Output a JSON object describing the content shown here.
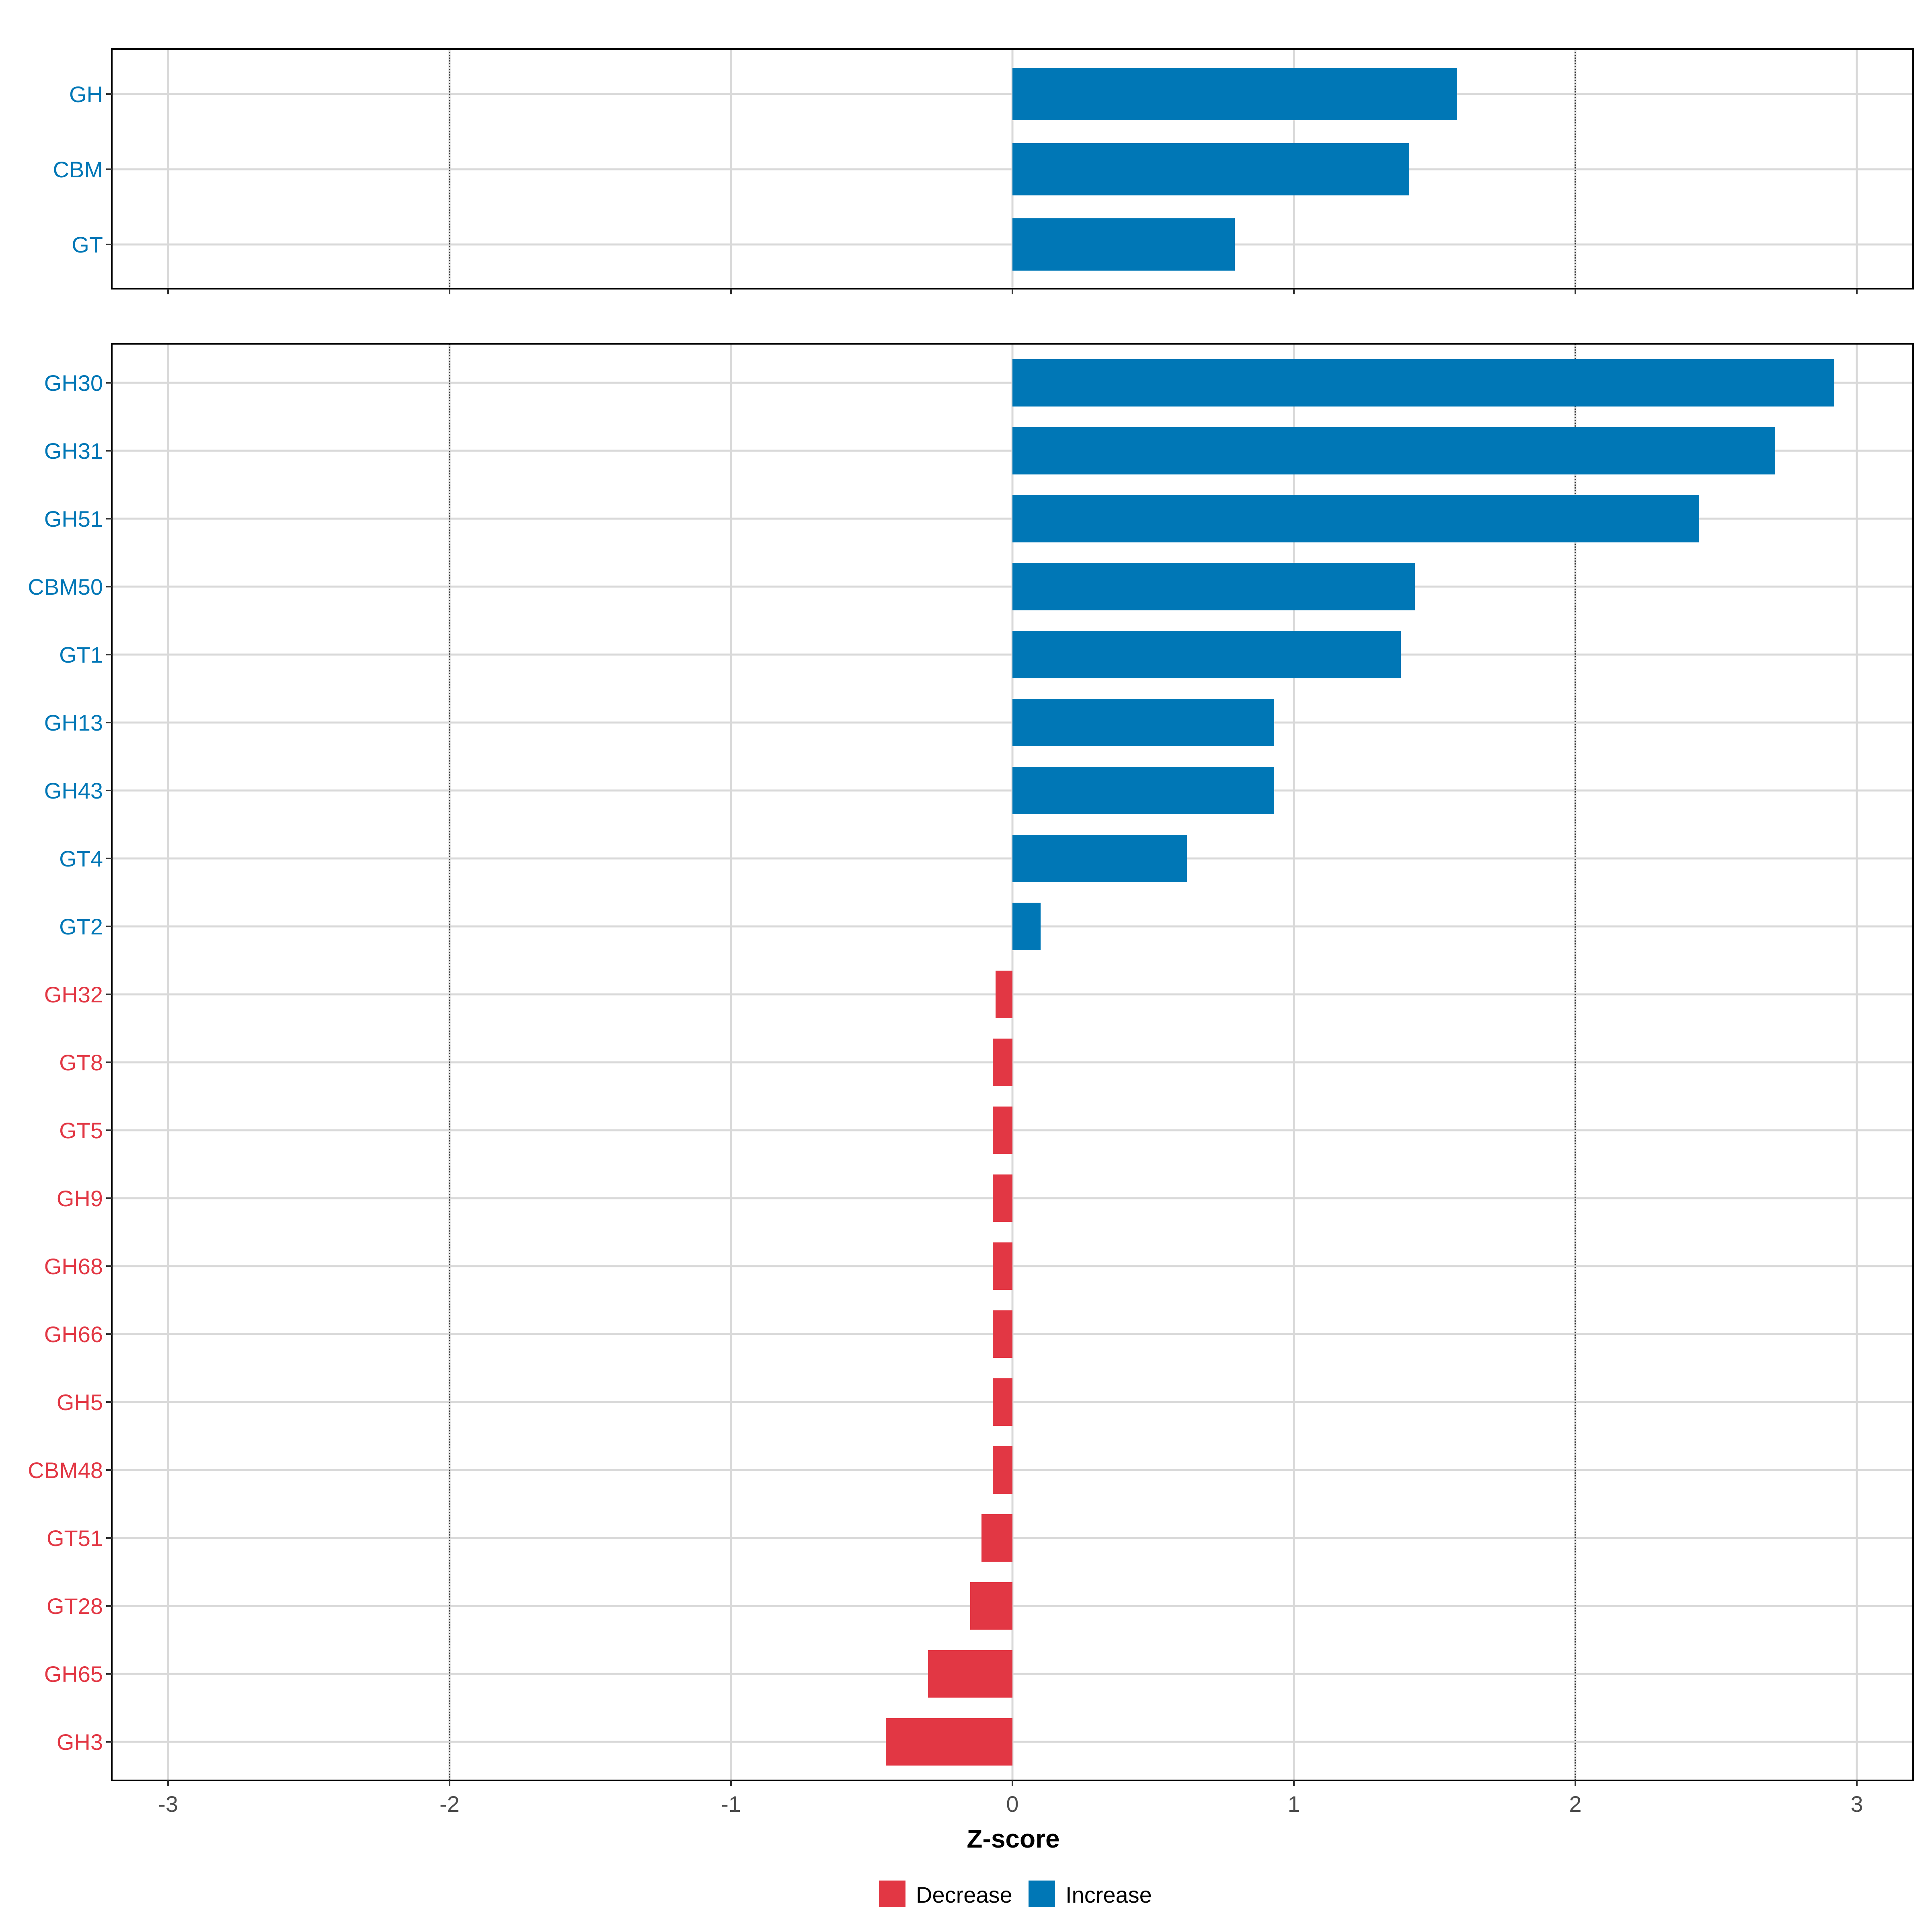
{
  "chart_data": [
    {
      "type": "bar",
      "orientation": "horizontal",
      "title": "",
      "xlabel": "Z-score",
      "ylabel": "",
      "xlim": [
        -3.2,
        3.2
      ],
      "x_ticks": [
        "-3",
        "-2",
        "-1",
        "0",
        "1",
        "2",
        "3"
      ],
      "x_tick_values": [
        -3,
        -2,
        -1,
        0,
        1,
        2,
        3
      ],
      "reference_lines": [
        -2,
        2
      ],
      "grid": true,
      "categories": [
        "GH",
        "CBM",
        "GT"
      ],
      "values": [
        1.58,
        1.41,
        0.79
      ],
      "direction": [
        "Increase",
        "Increase",
        "Increase"
      ]
    },
    {
      "type": "bar",
      "orientation": "horizontal",
      "title": "",
      "xlabel": "Z-score",
      "ylabel": "",
      "xlim": [
        -3.2,
        3.2
      ],
      "x_ticks": [
        "-3",
        "-2",
        "-1",
        "0",
        "1",
        "2",
        "3"
      ],
      "x_tick_values": [
        -3,
        -2,
        -1,
        0,
        1,
        2,
        3
      ],
      "reference_lines": [
        -2,
        2
      ],
      "grid": true,
      "categories": [
        "GH30",
        "GH31",
        "GH51",
        "CBM50",
        "GT1",
        "GH13",
        "GH43",
        "GT4",
        "GT2",
        "GH32",
        "GT8",
        "GT5",
        "GH9",
        "GH68",
        "GH66",
        "GH5",
        "CBM48",
        "GT51",
        "GT28",
        "GH65",
        "GH3"
      ],
      "values": [
        2.92,
        2.71,
        2.44,
        1.43,
        1.38,
        0.93,
        0.93,
        0.62,
        0.1,
        -0.06,
        -0.07,
        -0.07,
        -0.07,
        -0.07,
        -0.07,
        -0.07,
        -0.07,
        -0.11,
        -0.15,
        -0.3,
        -0.45
      ],
      "direction": [
        "Increase",
        "Increase",
        "Increase",
        "Increase",
        "Increase",
        "Increase",
        "Increase",
        "Increase",
        "Increase",
        "Decrease",
        "Decrease",
        "Decrease",
        "Decrease",
        "Decrease",
        "Decrease",
        "Decrease",
        "Decrease",
        "Decrease",
        "Decrease",
        "Decrease",
        "Decrease"
      ]
    }
  ],
  "legend": {
    "placement": "bottom",
    "items": [
      {
        "label": "Decrease",
        "color": "#e23744"
      },
      {
        "label": "Increase",
        "color": "#0077b6"
      }
    ]
  },
  "colors": {
    "Increase": "#0077b6",
    "Decrease": "#e23744",
    "grid": "#d9d9d9",
    "panel_border": "#000000",
    "reference_line": "#333333"
  }
}
